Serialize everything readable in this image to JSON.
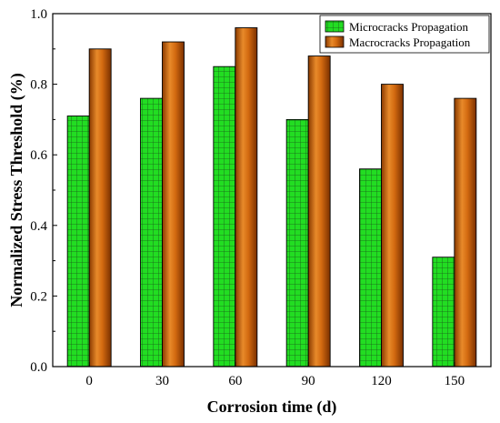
{
  "chart_data": {
    "type": "bar",
    "categories": [
      "0",
      "30",
      "60",
      "90",
      "120",
      "150"
    ],
    "series": [
      {
        "name": "Microcracks Propagation",
        "values": [
          0.71,
          0.76,
          0.85,
          0.7,
          0.56,
          0.31
        ],
        "color": "#22dd22",
        "pattern": "grid"
      },
      {
        "name": "Macrocracks Propagation",
        "values": [
          0.9,
          0.92,
          0.96,
          0.88,
          0.8,
          0.76
        ],
        "color": "#d36a10",
        "pattern": "gradient"
      }
    ],
    "xlabel": "Corrosion time (d)",
    "ylabel": "Normalized Stress Threshold (%)",
    "ylim": [
      0,
      1.0
    ],
    "yticks": [
      "0.0",
      "0.2",
      "0.4",
      "0.6",
      "0.8",
      "1.0"
    ],
    "grid": false,
    "legend": "top-right"
  }
}
